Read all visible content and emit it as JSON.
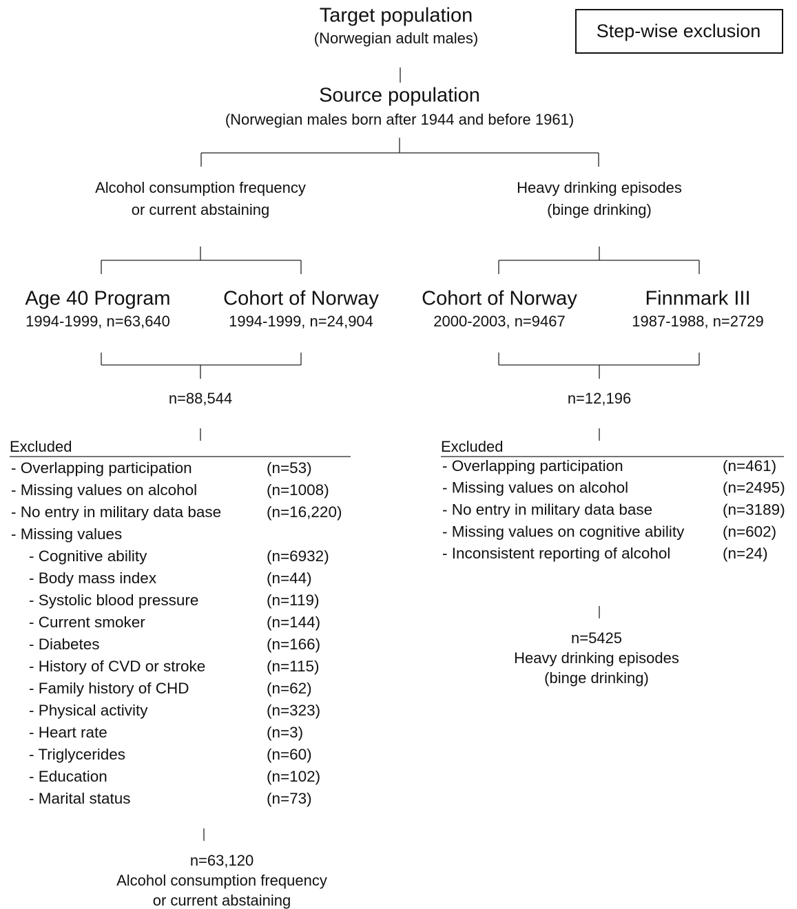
{
  "legend": "Step-wise exclusion",
  "target": {
    "title": "Target population",
    "subtitle": "(Norwegian adult males)"
  },
  "source": {
    "title": "Source population",
    "subtitle": "(Norwegian males born after 1944 and before 1961)"
  },
  "branches": [
    {
      "label": [
        "Alcohol consumption frequency",
        "or current abstaining"
      ],
      "cohorts": [
        {
          "name": "Age 40 Program",
          "detail": "1994-1999, n=63,640"
        },
        {
          "name": "Cohort of Norway",
          "detail": "1994-1999, n=24,904"
        }
      ],
      "pooled": "n=88,544",
      "excluded": {
        "heading": "Excluded",
        "items": [
          {
            "label": "- Overlapping participation",
            "count": "(n=53)"
          },
          {
            "label": "- Missing values on alcohol",
            "count": "(n=1008)"
          },
          {
            "label": "- No entry in military data base",
            "count": "(n=16,220)"
          },
          {
            "label": "- Missing values",
            "subitems": [
              {
                "label": "- Cognitive ability",
                "count": "(n=6932)"
              },
              {
                "label": "- Body mass index",
                "count": "(n=44)"
              },
              {
                "label": "- Systolic blood pressure",
                "count": "(n=119)"
              },
              {
                "label": "- Current smoker",
                "count": "(n=144)"
              },
              {
                "label": "- Diabetes",
                "count": "(n=166)"
              },
              {
                "label": "- History of CVD or stroke",
                "count": "(n=115)"
              },
              {
                "label": "- Family history of CHD",
                "count": "(n=62)"
              },
              {
                "label": "- Physical activity",
                "count": "(n=323)"
              },
              {
                "label": "- Heart rate",
                "count": "(n=3)"
              },
              {
                "label": "- Triglycerides",
                "count": "(n=60)"
              },
              {
                "label": "- Education",
                "count": "(n=102)"
              },
              {
                "label": "- Marital status",
                "count": "(n=73)"
              }
            ]
          }
        ]
      },
      "final": [
        "n=63,120",
        "Alcohol consumption frequency",
        "or current abstaining"
      ]
    },
    {
      "label": [
        "Heavy drinking episodes",
        "(binge drinking)"
      ],
      "cohorts": [
        {
          "name": "Cohort of Norway",
          "detail": "2000-2003, n=9467"
        },
        {
          "name": "Finnmark III",
          "detail": "1987-1988, n=2729"
        }
      ],
      "pooled": "n=12,196",
      "excluded": {
        "heading": "Excluded",
        "items": [
          {
            "label": "- Overlapping participation",
            "count": "(n=461)"
          },
          {
            "label": "- Missing values on alcohol",
            "count": "(n=2495)"
          },
          {
            "label": "- No entry in military data base",
            "count": "(n=3189)"
          },
          {
            "label": "- Missing values on cognitive ability",
            "count": "(n=602)"
          },
          {
            "label": "- Inconsistent reporting of alcohol",
            "count": "(n=24)"
          }
        ]
      },
      "final": [
        "n=5425",
        "Heavy drinking episodes",
        "(binge drinking)"
      ]
    }
  ]
}
